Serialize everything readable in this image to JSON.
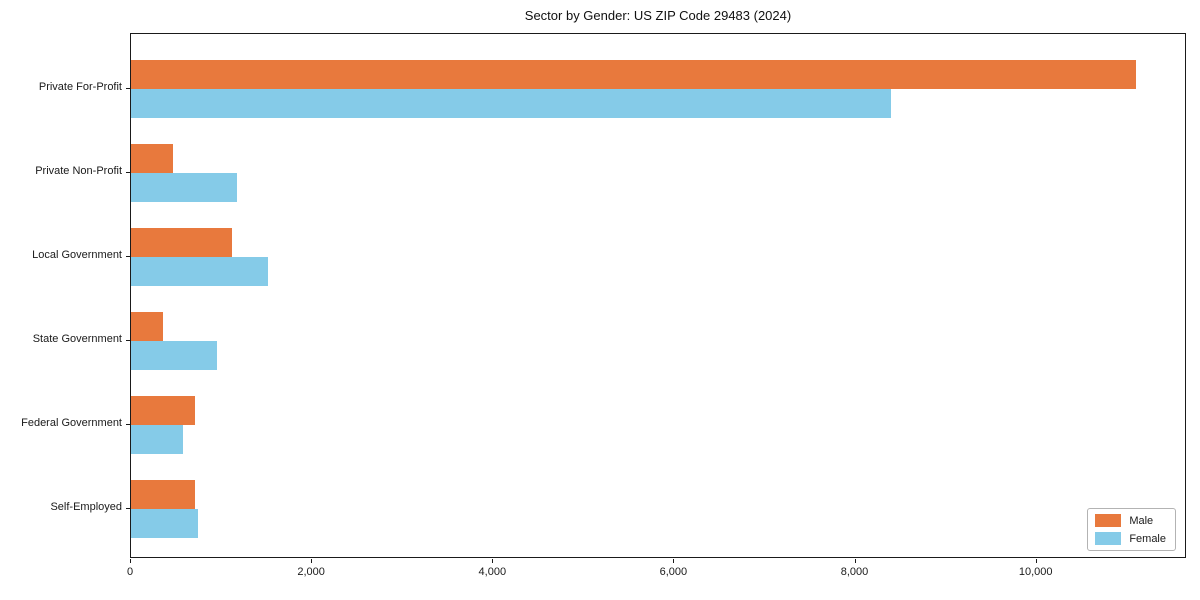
{
  "chart_data": {
    "type": "bar",
    "orientation": "horizontal",
    "title": "Sector by Gender: US ZIP Code 29483 (2024)",
    "categories": [
      "Private For-Profit",
      "Private Non-Profit",
      "Local Government",
      "State Government",
      "Federal Government",
      "Self-Employed"
    ],
    "series": [
      {
        "name": "Male",
        "color": "#e8793d",
        "values": [
          11100,
          465,
          1115,
          355,
          705,
          705
        ]
      },
      {
        "name": "Female",
        "color": "#85cbe8",
        "values": [
          8390,
          1170,
          1510,
          950,
          575,
          740
        ]
      }
    ],
    "xlabel": "",
    "ylabel": "",
    "xlim": [
      0,
      11660
    ],
    "xticks": [
      0,
      2000,
      4000,
      6000,
      8000,
      10000
    ],
    "xtick_labels": [
      "0",
      "2,000",
      "4,000",
      "6,000",
      "8,000",
      "10,000"
    ],
    "grid": false,
    "legend_position": "lower right",
    "plot_border": true
  }
}
